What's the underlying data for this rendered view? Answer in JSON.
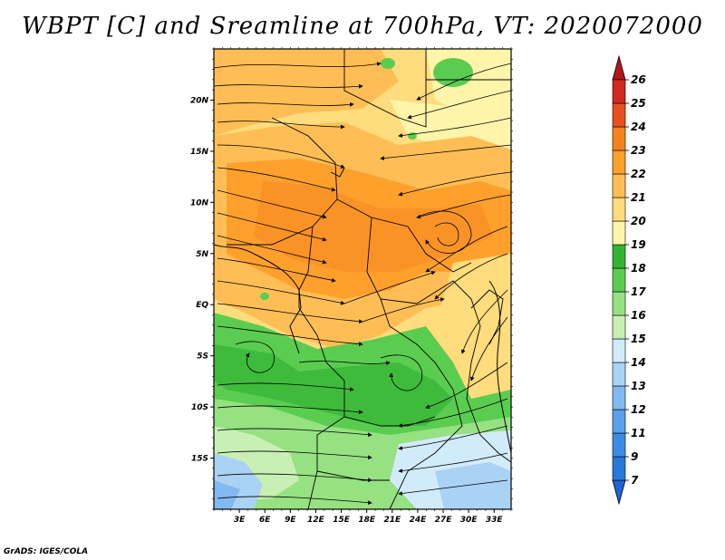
{
  "title": "WBPT [C] and Sreamline at 700hPa, VT: 2020072000",
  "credit": "GrADS: IGES/COLA",
  "lat_axis": {
    "labels": [
      "20N",
      "15N",
      "10N",
      "5N",
      "EQ",
      "5S",
      "10S",
      "15S"
    ],
    "values": [
      20,
      15,
      10,
      5,
      0,
      -5,
      -10,
      -15
    ],
    "range": [
      -20,
      25
    ]
  },
  "lon_axis": {
    "labels": [
      "3E",
      "6E",
      "9E",
      "12E",
      "15E",
      "18E",
      "21E",
      "24E",
      "27E",
      "30E",
      "33E"
    ],
    "values": [
      3,
      6,
      9,
      12,
      15,
      18,
      21,
      24,
      27,
      30,
      33
    ],
    "range": [
      0,
      35
    ]
  },
  "colorbar": {
    "labels": [
      "7",
      "9",
      "11",
      "12",
      "13",
      "14",
      "15",
      "16",
      "17",
      "18",
      "19",
      "20",
      "21",
      "22",
      "23",
      "24",
      "25",
      "26"
    ],
    "colors": [
      "#1e64d2",
      "#2878dc",
      "#3c8ce6",
      "#5aa0eb",
      "#82b9f0",
      "#aad2f5",
      "#d2ebfa",
      "#c8f0b4",
      "#96e182",
      "#5acd50",
      "#32b432",
      "#fff5aa",
      "#ffdc7d",
      "#ffbe55",
      "#ffa02d",
      "#f5821e",
      "#e6501e",
      "#d2281e",
      "#b4141e"
    ]
  }
}
